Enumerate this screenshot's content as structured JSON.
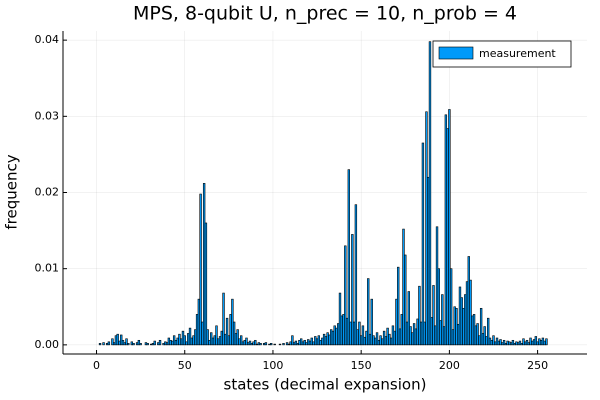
{
  "chart_data": {
    "type": "bar",
    "title": "MPS, 8-qubit U, n_prec = 10, n_prob = 4",
    "xlabel": "states (decimal expansion)",
    "ylabel": "frequency",
    "legend": "top-right",
    "grid": true,
    "xlim": [
      -19,
      278
    ],
    "ylim": [
      -0.0012,
      0.0412
    ],
    "xticks": [
      0,
      50,
      100,
      150,
      200,
      250
    ],
    "yticks": [
      {
        "value": 0,
        "label": "0.00"
      },
      0.01,
      0.02,
      0.03,
      0.04
    ],
    "x": [
      0,
      1,
      2,
      3,
      4,
      5,
      6,
      7,
      8,
      9,
      10,
      11,
      12,
      13,
      14,
      15,
      16,
      17,
      18,
      19,
      20,
      21,
      22,
      23,
      24,
      25,
      26,
      27,
      28,
      29,
      30,
      31,
      32,
      33,
      34,
      35,
      36,
      37,
      38,
      39,
      40,
      41,
      42,
      43,
      44,
      45,
      46,
      47,
      48,
      49,
      50,
      51,
      52,
      53,
      54,
      55,
      56,
      57,
      58,
      59,
      60,
      61,
      62,
      63,
      64,
      65,
      66,
      67,
      68,
      69,
      70,
      71,
      72,
      73,
      74,
      75,
      76,
      77,
      78,
      79,
      80,
      81,
      82,
      83,
      84,
      85,
      86,
      87,
      88,
      89,
      90,
      91,
      92,
      93,
      94,
      95,
      96,
      97,
      98,
      99,
      100,
      101,
      102,
      103,
      104,
      105,
      106,
      107,
      108,
      109,
      110,
      111,
      112,
      113,
      114,
      115,
      116,
      117,
      118,
      119,
      120,
      121,
      122,
      123,
      124,
      125,
      126,
      127,
      128,
      129,
      130,
      131,
      132,
      133,
      134,
      135,
      136,
      137,
      138,
      139,
      140,
      141,
      142,
      143,
      144,
      145,
      146,
      147,
      148,
      149,
      150,
      151,
      152,
      153,
      154,
      155,
      156,
      157,
      158,
      159,
      160,
      161,
      162,
      163,
      164,
      165,
      166,
      167,
      168,
      169,
      170,
      171,
      172,
      173,
      174,
      175,
      176,
      177,
      178,
      179,
      180,
      181,
      182,
      183,
      184,
      185,
      186,
      187,
      188,
      189,
      190,
      191,
      192,
      193,
      194,
      195,
      196,
      197,
      198,
      199,
      200,
      201,
      202,
      203,
      204,
      205,
      206,
      207,
      208,
      209,
      210,
      211,
      212,
      213,
      214,
      215,
      216,
      217,
      218,
      219,
      220,
      221,
      222,
      223,
      224,
      225,
      226,
      227,
      228,
      229,
      230,
      231,
      232,
      233,
      234,
      235,
      236,
      237,
      238,
      239,
      240,
      241,
      242,
      243,
      244,
      245,
      246,
      247,
      248,
      249,
      250,
      251,
      252,
      253,
      254,
      255
    ],
    "series": [
      {
        "name": "measurement",
        "color": "#009af9",
        "values": [
          0,
          0,
          0.0002,
          0,
          0.0003,
          0,
          0.0002,
          0.0004,
          0,
          0.0008,
          0.0003,
          0.0012,
          0.0014,
          0.0005,
          0.0013,
          0.0006,
          0.0003,
          0.0008,
          0.0002,
          0,
          0.0004,
          0.0002,
          0,
          0.0003,
          0.0006,
          0.0002,
          0,
          0,
          0.0003,
          0.0002,
          0,
          0.0001,
          0.0002,
          0.0005,
          0,
          0.0003,
          0.0006,
          0,
          0.0002,
          0.0004,
          0.0003,
          0.0009,
          0.0006,
          0.0005,
          0.0012,
          0.0006,
          0.0009,
          0.0014,
          0.0008,
          0.0018,
          0.0012,
          0.0004,
          0.0015,
          0.0022,
          0.0009,
          0.0012,
          0.002,
          0.004,
          0.006,
          0.0198,
          0.003,
          0.0212,
          0.016,
          0.002,
          0.0006,
          0.0016,
          0.0009,
          0.0012,
          0.0025,
          0.0008,
          0.0011,
          0.0018,
          0.0068,
          0.0014,
          0.0035,
          0.0012,
          0.004,
          0.006,
          0.003,
          0.0015,
          0.002,
          0.0008,
          0.0012,
          0.0004,
          0.0006,
          0.0009,
          0.0003,
          0.0005,
          0.0002,
          0.0004,
          0.0006,
          0.0001,
          0.0003,
          0.0002,
          0,
          0.0002,
          0.0003,
          0,
          0.0001,
          0.0002,
          0,
          0.0001,
          0,
          0,
          0.0001,
          0,
          0.0002,
          0,
          0.0003,
          0.0001,
          0.0004,
          0.0012,
          0.0003,
          0.0005,
          0.0002,
          0.0006,
          0.0008,
          0.0004,
          0.0006,
          0.0003,
          0.0007,
          0.0005,
          0.0009,
          0.0004,
          0.0011,
          0.0008,
          0.0012,
          0.0006,
          0.0009,
          0.0014,
          0.0011,
          0.0016,
          0.0013,
          0.002,
          0.0018,
          0.0025,
          0.0022,
          0.0028,
          0.0068,
          0.0038,
          0.004,
          0.013,
          0.0035,
          0.023,
          0.003,
          0.0145,
          0.003,
          0.0184,
          0.002,
          0.003,
          0.0012,
          0.0025,
          0.001,
          0.0018,
          0.0087,
          0.0014,
          0.006,
          0.0012,
          0.0009,
          0.0016,
          0.0006,
          0.0012,
          0.0008,
          0.0018,
          0.0011,
          0.0022,
          0.0014,
          0.0009,
          0.0025,
          0.0018,
          0.006,
          0.0102,
          0.0021,
          0.004,
          0.0152,
          0.0118,
          0.003,
          0.007,
          0.0024,
          0.0016,
          0.0028,
          0.0021,
          0.0034,
          0.0077,
          0.003,
          0.0265,
          0.003,
          0.0306,
          0.022,
          0.0398,
          0.0036,
          0.0078,
          0.0025,
          0.0155,
          0.01,
          0.0032,
          0.0066,
          0.0024,
          0.0302,
          0.0284,
          0.0309,
          0.01,
          0.002,
          0.005,
          0.0048,
          0.0027,
          0.0076,
          0.0062,
          0.0048,
          0.0066,
          0.0083,
          0.0116,
          0.0085,
          0.0038,
          0.004,
          0.0025,
          0.0028,
          0.0012,
          0.0048,
          0.0015,
          0.0024,
          0.0011,
          0.0035,
          0.0009,
          0.0006,
          0.0012,
          0.0004,
          0.0009,
          0.0005,
          0.0007,
          0.0003,
          0.0006,
          0.0002,
          0.0005,
          0.0004,
          0.0003,
          0.0006,
          0.0002,
          0.0004,
          0.0003,
          0.0005,
          0.0002,
          0.0008,
          0.0004,
          0.0006,
          0.0003,
          0.0009,
          0.0005,
          0.0007,
          0.0011,
          0.0004,
          0.0008,
          0.0006,
          0.0009,
          0.0005,
          0.0008
        ]
      }
    ]
  }
}
